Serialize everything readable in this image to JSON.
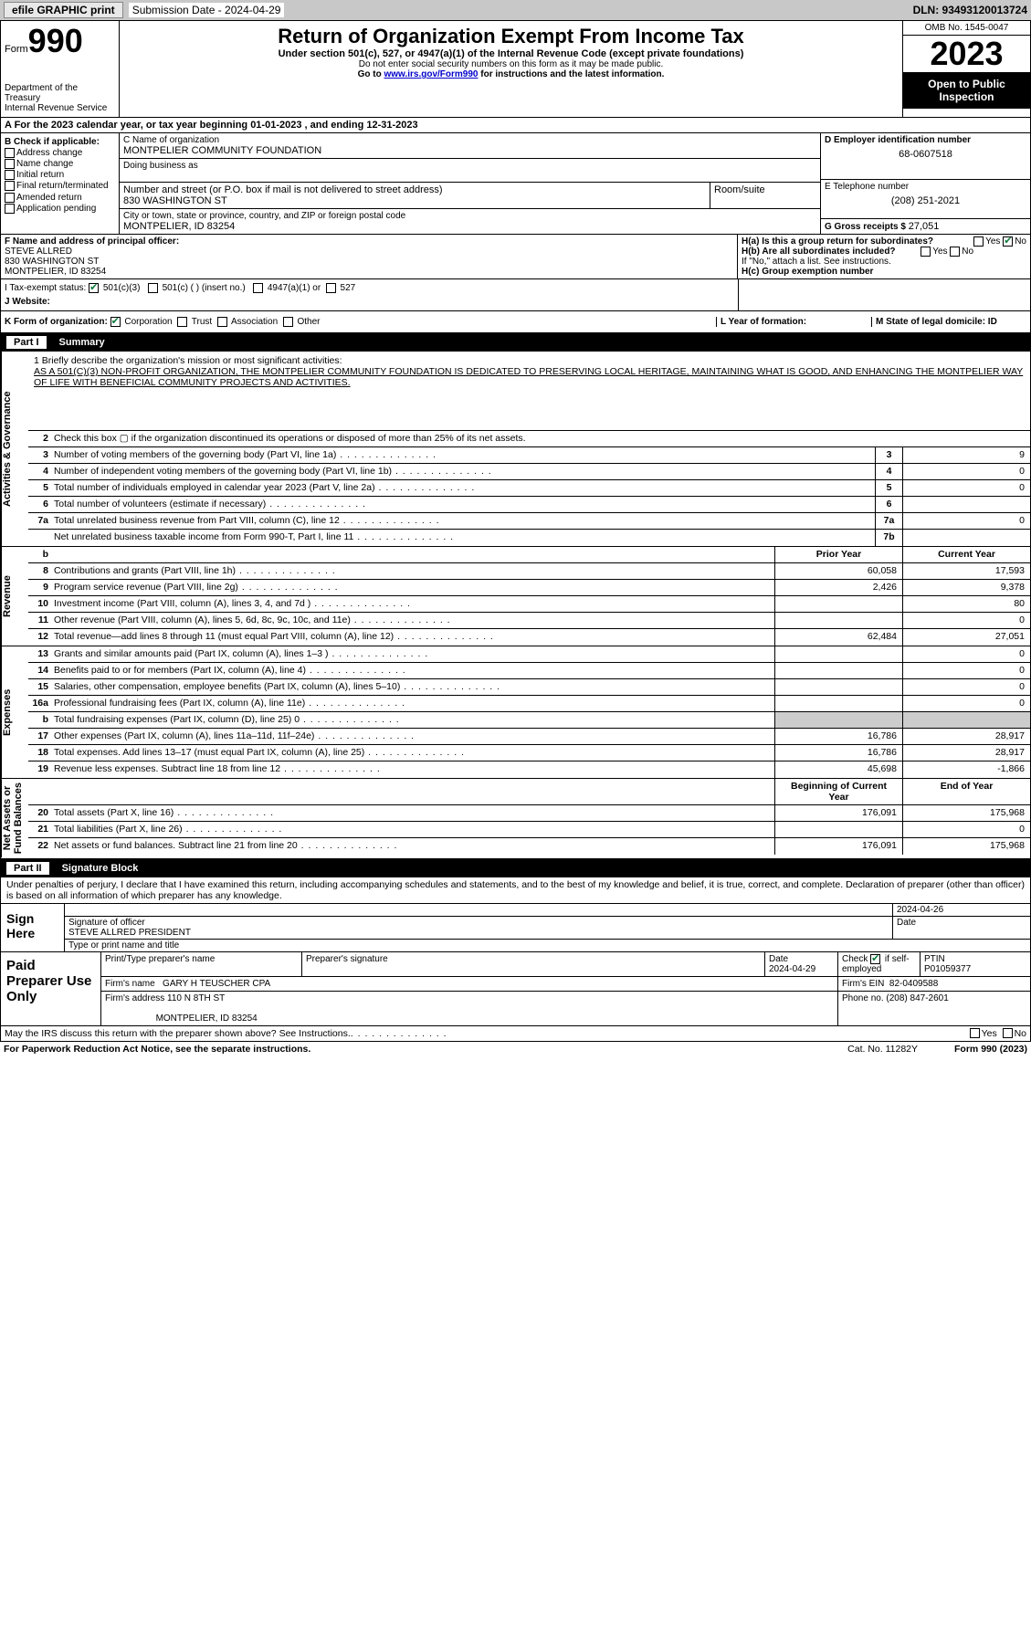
{
  "top": {
    "efile": "efile GRAPHIC print",
    "submission_label": "Submission Date - 2024-04-29",
    "dln": "DLN: 93493120013724"
  },
  "header": {
    "form_word": "Form",
    "form_no": "990",
    "title": "Return of Organization Exempt From Income Tax",
    "subtitle": "Under section 501(c), 527, or 4947(a)(1) of the Internal Revenue Code (except private foundations)",
    "warn": "Do not enter social security numbers on this form as it may be made public.",
    "goto_pre": "Go to ",
    "goto_link": "www.irs.gov/Form990",
    "goto_post": " for instructions and the latest information.",
    "dept": "Department of the Treasury\nInternal Revenue Service",
    "omb": "OMB No. 1545-0047",
    "year": "2023",
    "open_pub": "Open to Public Inspection"
  },
  "rowA": "A   For the 2023 calendar year, or tax year beginning 01-01-2023    , and ending 12-31-2023",
  "boxB": {
    "label": "B Check if applicable:",
    "items": [
      "Address change",
      "Name change",
      "Initial return",
      "Final return/terminated",
      "Amended return",
      "Application pending"
    ]
  },
  "boxC": {
    "name_lbl": "C Name of organization",
    "name": "MONTPELIER COMMUNITY FOUNDATION",
    "dba_lbl": "Doing business as",
    "street_lbl": "Number and street (or P.O. box if mail is not delivered to street address)",
    "street": "830 WASHINGTON ST",
    "room_lbl": "Room/suite",
    "city_lbl": "City or town, state or province, country, and ZIP or foreign postal code",
    "city": "MONTPELIER, ID  83254"
  },
  "boxD": {
    "lbl": "D Employer identification number",
    "val": "68-0607518"
  },
  "boxE": {
    "lbl": "E Telephone number",
    "val": "(208) 251-2021"
  },
  "boxG": {
    "lbl": "G Gross receipts $",
    "val": "27,051"
  },
  "boxF": {
    "lbl": "F  Name and address of principal officer:",
    "name": "STEVE ALLRED",
    "street": "830 WASHINGTON ST",
    "city": "MONTPELIER, ID  83254"
  },
  "boxH": {
    "ha": "H(a)  Is this a group return for subordinates?",
    "yes": "Yes",
    "no": "No",
    "hb": "H(b)  Are all subordinates included?",
    "hb_note": "If \"No,\" attach a list. See instructions.",
    "hc": "H(c)  Group exemption number"
  },
  "rowI": {
    "lbl": "I    Tax-exempt status:",
    "opt1": "501(c)(3)",
    "opt2": "501(c) (  ) (insert no.)",
    "opt3": "4947(a)(1) or",
    "opt4": "527"
  },
  "rowJ": {
    "lbl": "J   Website:"
  },
  "rowK": {
    "lbl": "K Form of organization:",
    "opts": [
      "Corporation",
      "Trust",
      "Association",
      "Other"
    ],
    "L": "L Year of formation:",
    "M": "M State of legal domicile: ID"
  },
  "part1": {
    "num": "Part I",
    "title": "Summary"
  },
  "mission": {
    "prompt": "1   Briefly describe the organization's mission or most significant activities:",
    "text": "AS A 501(C)(3) NON-PROFIT ORGANIZATION, THE MONTPELIER COMMUNITY FOUNDATION IS DEDICATED TO PRESERVING LOCAL HERITAGE, MAINTAINING WHAT IS GOOD, AND ENHANCING THE MONTPELIER WAY OF LIFE WITH BENEFICIAL COMMUNITY PROJECTS AND ACTIVITIES."
  },
  "gov_rows": [
    {
      "n": "2",
      "d": "Check this box ▢ if the organization discontinued its operations or disposed of more than 25% of its net assets."
    },
    {
      "n": "3",
      "d": "Number of voting members of the governing body (Part VI, line 1a)",
      "ln": "3",
      "v": "9"
    },
    {
      "n": "4",
      "d": "Number of independent voting members of the governing body (Part VI, line 1b)",
      "ln": "4",
      "v": "0"
    },
    {
      "n": "5",
      "d": "Total number of individuals employed in calendar year 2023 (Part V, line 2a)",
      "ln": "5",
      "v": "0"
    },
    {
      "n": "6",
      "d": "Total number of volunteers (estimate if necessary)",
      "ln": "6",
      "v": ""
    },
    {
      "n": "7a",
      "d": "Total unrelated business revenue from Part VIII, column (C), line 12",
      "ln": "7a",
      "v": "0"
    },
    {
      "n": "",
      "d": "Net unrelated business taxable income from Form 990-T, Part I, line 11",
      "ln": "7b",
      "v": ""
    }
  ],
  "rev_hdr": {
    "b": "b",
    "py": "Prior Year",
    "cy": "Current Year"
  },
  "rev_rows": [
    {
      "n": "8",
      "d": "Contributions and grants (Part VIII, line 1h)",
      "py": "60,058",
      "cy": "17,593"
    },
    {
      "n": "9",
      "d": "Program service revenue (Part VIII, line 2g)",
      "py": "2,426",
      "cy": "9,378"
    },
    {
      "n": "10",
      "d": "Investment income (Part VIII, column (A), lines 3, 4, and 7d )",
      "py": "",
      "cy": "80"
    },
    {
      "n": "11",
      "d": "Other revenue (Part VIII, column (A), lines 5, 6d, 8c, 9c, 10c, and 11e)",
      "py": "",
      "cy": "0"
    },
    {
      "n": "12",
      "d": "Total revenue—add lines 8 through 11 (must equal Part VIII, column (A), line 12)",
      "py": "62,484",
      "cy": "27,051"
    }
  ],
  "exp_rows": [
    {
      "n": "13",
      "d": "Grants and similar amounts paid (Part IX, column (A), lines 1–3 )",
      "py": "",
      "cy": "0"
    },
    {
      "n": "14",
      "d": "Benefits paid to or for members (Part IX, column (A), line 4)",
      "py": "",
      "cy": "0"
    },
    {
      "n": "15",
      "d": "Salaries, other compensation, employee benefits (Part IX, column (A), lines 5–10)",
      "py": "",
      "cy": "0"
    },
    {
      "n": "16a",
      "d": "Professional fundraising fees (Part IX, column (A), line 11e)",
      "py": "",
      "cy": "0"
    },
    {
      "n": "b",
      "d": "Total fundraising expenses (Part IX, column (D), line 25) 0",
      "shade": true
    },
    {
      "n": "17",
      "d": "Other expenses (Part IX, column (A), lines 11a–11d, 11f–24e)",
      "py": "16,786",
      "cy": "28,917"
    },
    {
      "n": "18",
      "d": "Total expenses. Add lines 13–17 (must equal Part IX, column (A), line 25)",
      "py": "16,786",
      "cy": "28,917"
    },
    {
      "n": "19",
      "d": "Revenue less expenses. Subtract line 18 from line 12",
      "py": "45,698",
      "cy": "-1,866"
    }
  ],
  "na_hdr": {
    "py": "Beginning of Current Year",
    "cy": "End of Year"
  },
  "na_rows": [
    {
      "n": "20",
      "d": "Total assets (Part X, line 16)",
      "py": "176,091",
      "cy": "175,968"
    },
    {
      "n": "21",
      "d": "Total liabilities (Part X, line 26)",
      "py": "",
      "cy": "0"
    },
    {
      "n": "22",
      "d": "Net assets or fund balances. Subtract line 21 from line 20",
      "py": "176,091",
      "cy": "175,968"
    }
  ],
  "vtabs": {
    "gov": "Activities & Governance",
    "rev": "Revenue",
    "exp": "Expenses",
    "na": "Net Assets or\nFund Balances"
  },
  "part2": {
    "num": "Part II",
    "title": "Signature Block"
  },
  "sig_intro": "Under penalties of perjury, I declare that I have examined this return, including accompanying schedules and statements, and to the best of my knowledge and belief, it is true, correct, and complete. Declaration of preparer (other than officer) is based on all information of which preparer has any knowledge.",
  "sign_here": {
    "label": "Sign Here",
    "date": "2024-04-26",
    "sig_lbl": "Signature of officer",
    "name": "STEVE ALLRED  PRESIDENT",
    "name_lbl": "Type or print name and title",
    "date_lbl": "Date"
  },
  "paid": {
    "label": "Paid Preparer Use Only",
    "pt_lbl": "Print/Type preparer's name",
    "ps_lbl": "Preparer's signature",
    "date_lbl": "Date",
    "date": "2024-04-29",
    "check_lbl": "Check",
    "check_if": "if self-employed",
    "ptin_lbl": "PTIN",
    "ptin": "P01059377",
    "firm_name_lbl": "Firm's name",
    "firm_name": "GARY H TEUSCHER CPA",
    "firm_ein_lbl": "Firm's EIN",
    "firm_ein": "82-0409588",
    "firm_addr_lbl": "Firm's address",
    "firm_addr1": "110 N 8TH ST",
    "firm_addr2": "MONTPELIER, ID  83254",
    "phone_lbl": "Phone no.",
    "phone": "(208) 847-2601"
  },
  "footer": {
    "discuss": "May the IRS discuss this return with the preparer shown above? See Instructions.",
    "yes": "Yes",
    "no": "No",
    "paperwork": "For Paperwork Reduction Act Notice, see the separate instructions.",
    "cat": "Cat. No. 11282Y",
    "form": "Form 990 (2023)"
  }
}
